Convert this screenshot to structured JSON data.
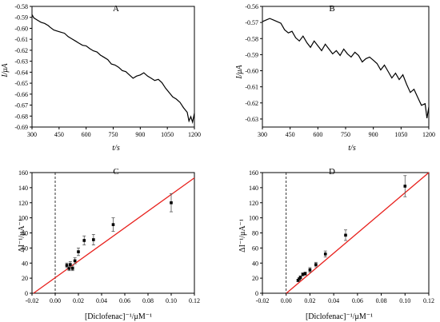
{
  "chart_data": [
    {
      "panel": "A",
      "type": "line",
      "xlabel": "t/s",
      "ylabel": "I/μA",
      "xlim": [
        300,
        1200
      ],
      "ylim": [
        -0.69,
        -0.58
      ],
      "xticks": [
        300,
        450,
        600,
        750,
        900,
        1050,
        1200
      ],
      "yticks": [
        -0.58,
        -0.59,
        -0.6,
        -0.61,
        -0.62,
        -0.63,
        -0.64,
        -0.65,
        -0.66,
        -0.67,
        -0.68,
        -0.69
      ],
      "ytick_labels": [
        "-0.58",
        "-0.59",
        "-0.60",
        "-0.61",
        "-0.62",
        "-0.63",
        "-0.64",
        "-0.65",
        "-0.66",
        "-0.67",
        "-0.68",
        "-0.69"
      ],
      "series": [
        {
          "color": "#000000",
          "x": [
            300,
            310,
            330,
            350,
            370,
            390,
            400,
            420,
            440,
            460,
            480,
            500,
            520,
            540,
            560,
            580,
            600,
            620,
            640,
            660,
            680,
            700,
            720,
            740,
            760,
            780,
            800,
            820,
            840,
            860,
            880,
            900,
            920,
            940,
            960,
            980,
            1000,
            1020,
            1040,
            1060,
            1080,
            1100,
            1120,
            1140,
            1160,
            1170,
            1180,
            1190,
            1200
          ],
          "y": [
            -0.5875,
            -0.5905,
            -0.5925,
            -0.5945,
            -0.5955,
            -0.5975,
            -0.599,
            -0.6015,
            -0.6025,
            -0.6035,
            -0.6045,
            -0.6075,
            -0.6095,
            -0.6115,
            -0.6135,
            -0.6155,
            -0.616,
            -0.6185,
            -0.6205,
            -0.6215,
            -0.6245,
            -0.6265,
            -0.6285,
            -0.6325,
            -0.6335,
            -0.6355,
            -0.6385,
            -0.6395,
            -0.6425,
            -0.6455,
            -0.6435,
            -0.6425,
            -0.6405,
            -0.6435,
            -0.6455,
            -0.6475,
            -0.6465,
            -0.6495,
            -0.6545,
            -0.6585,
            -0.6625,
            -0.6645,
            -0.6675,
            -0.6725,
            -0.6765,
            -0.6845,
            -0.6805,
            -0.6855,
            -0.6775
          ]
        }
      ]
    },
    {
      "panel": "B",
      "type": "line",
      "xlabel": "t/s",
      "ylabel": "I/μA",
      "xlim": [
        300,
        1200
      ],
      "ylim": [
        -0.635,
        -0.56
      ],
      "xticks": [
        300,
        450,
        600,
        750,
        900,
        1050,
        1200
      ],
      "yticks": [
        -0.56,
        -0.57,
        -0.58,
        -0.59,
        -0.6,
        -0.61,
        -0.62,
        -0.63
      ],
      "ytick_labels": [
        "-0.56",
        "-0.57",
        "-0.58",
        "-0.59",
        "-0.60",
        "-0.61",
        "-0.62",
        "-0.63"
      ],
      "series": [
        {
          "color": "#000000",
          "x": [
            300,
            320,
            340,
            360,
            380,
            400,
            420,
            440,
            460,
            480,
            500,
            520,
            540,
            560,
            580,
            600,
            620,
            640,
            660,
            680,
            700,
            720,
            740,
            760,
            780,
            800,
            820,
            840,
            860,
            880,
            900,
            920,
            940,
            960,
            980,
            1000,
            1020,
            1040,
            1060,
            1080,
            1100,
            1120,
            1140,
            1160,
            1180,
            1190,
            1200
          ],
          "y": [
            -0.5695,
            -0.5685,
            -0.5675,
            -0.5685,
            -0.5695,
            -0.5705,
            -0.5745,
            -0.5765,
            -0.5755,
            -0.5795,
            -0.5815,
            -0.5785,
            -0.5825,
            -0.5855,
            -0.5815,
            -0.5845,
            -0.5875,
            -0.5835,
            -0.5865,
            -0.5895,
            -0.5875,
            -0.5905,
            -0.5865,
            -0.5895,
            -0.5915,
            -0.5885,
            -0.5905,
            -0.5945,
            -0.5925,
            -0.5915,
            -0.5935,
            -0.5955,
            -0.5995,
            -0.5965,
            -0.6005,
            -0.6045,
            -0.6015,
            -0.6055,
            -0.6025,
            -0.6085,
            -0.6135,
            -0.6115,
            -0.6165,
            -0.6215,
            -0.6205,
            -0.6295,
            -0.6225
          ]
        }
      ]
    },
    {
      "panel": "C",
      "type": "scatter",
      "xlabel": "[Diclofenac]⁻¹/μM⁻¹",
      "ylabel": "ΔI⁻¹/μA⁻¹",
      "xlim": [
        -0.02,
        0.12
      ],
      "ylim": [
        0,
        160
      ],
      "xticks": [
        -0.02,
        0,
        0.02,
        0.04,
        0.06,
        0.08,
        0.1,
        0.12
      ],
      "xtick_labels": [
        "-0.02",
        "0.00",
        "0.02",
        "0.04",
        "0.06",
        "0.08",
        "0.10",
        "0.12"
      ],
      "yticks": [
        0,
        20,
        40,
        60,
        80,
        100,
        120,
        140,
        160
      ],
      "ytick_labels": [
        "0",
        "20",
        "40",
        "60",
        "80",
        "100",
        "120",
        "140",
        "160"
      ],
      "points": {
        "x": [
          0.01,
          0.012,
          0.013,
          0.015,
          0.017,
          0.02,
          0.025,
          0.033,
          0.05,
          0.1
        ],
        "y": [
          37,
          33,
          38,
          33,
          43,
          55,
          70,
          71,
          91,
          120
        ],
        "err": [
          3,
          3,
          4,
          3,
          4,
          5,
          6,
          7,
          9,
          12
        ]
      },
      "fit_line": {
        "color": "#e8211d",
        "x": [
          -0.0187,
          0.12
        ],
        "y": [
          0,
          153
        ]
      }
    },
    {
      "panel": "D",
      "type": "scatter",
      "xlabel": "[Diclofenac]⁻¹/μM⁻¹",
      "ylabel": "ΔI⁻¹/μA⁻¹",
      "xlim": [
        -0.02,
        0.12
      ],
      "ylim": [
        0,
        160
      ],
      "xticks": [
        -0.02,
        0,
        0.02,
        0.04,
        0.06,
        0.08,
        0.1,
        0.12
      ],
      "xtick_labels": [
        "-0.02",
        "0.00",
        "0.02",
        "0.04",
        "0.06",
        "0.08",
        "0.10",
        "0.12"
      ],
      "yticks": [
        0,
        20,
        40,
        60,
        80,
        100,
        120,
        140,
        160
      ],
      "ytick_labels": [
        "0",
        "20",
        "40",
        "60",
        "80",
        "100",
        "120",
        "140",
        "160"
      ],
      "points": {
        "x": [
          0.01,
          0.011,
          0.012,
          0.014,
          0.016,
          0.02,
          0.025,
          0.033,
          0.05,
          0.1
        ],
        "y": [
          17,
          19,
          21,
          25,
          26,
          31,
          38,
          52,
          77,
          142
        ],
        "err": [
          1.5,
          1.5,
          2,
          2,
          2,
          3,
          3,
          4,
          7,
          14
        ]
      },
      "fit_line": {
        "color": "#e8211d",
        "x": [
          0.0002,
          0.12
        ],
        "y": [
          0,
          160
        ]
      }
    }
  ]
}
